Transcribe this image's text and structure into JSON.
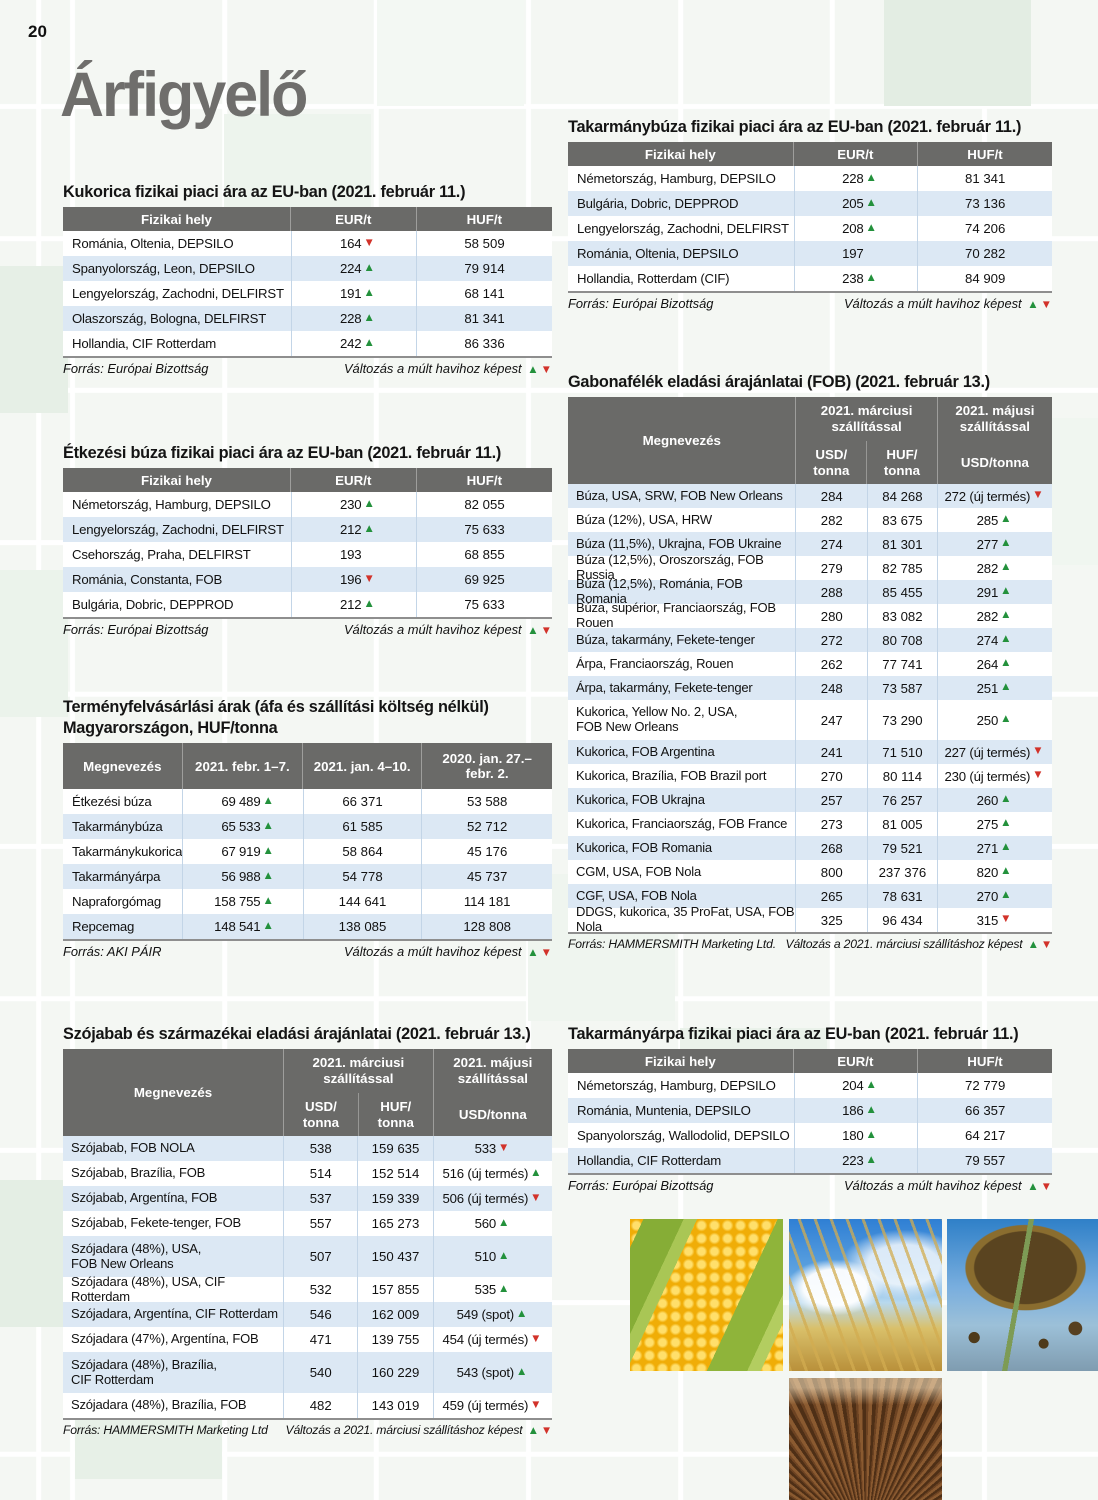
{
  "page": {
    "number": "20",
    "logo": "Árfigyelő"
  },
  "arrows": {
    "up": "▲",
    "down": "▼"
  },
  "colors": {
    "table_header_bg": "#6a6a68",
    "row_stripe": "#dce8f4",
    "trend_up": "#23913c",
    "trend_down": "#d2322a",
    "logo_gray": "#6f6e6c"
  },
  "tables": {
    "kukorica": {
      "title": "Kukorica fizikai piaci ára az EU-ban (2021. február 11.)",
      "headers": [
        "Fizikai hely",
        "EUR/t",
        "HUF/t"
      ],
      "rows": [
        [
          "Románia, Oltenia, DEPSILO",
          "164",
          "down",
          "58 509"
        ],
        [
          "Spanyolország, Leon, DEPSILO",
          "224",
          "up",
          "79 914"
        ],
        [
          "Lengyelország, Zachodni, DELFIRST",
          "191",
          "up",
          "68 141"
        ],
        [
          "Olaszország, Bologna, DELFIRST",
          "228",
          "up",
          "81 341"
        ],
        [
          "Hollandia, CIF Rotterdam",
          "242",
          "up",
          "86 336"
        ]
      ],
      "source": "Forrás: Európai Bizottság",
      "note": "Változás a múlt havihoz képest"
    },
    "etkezesi": {
      "title": "Étkezési búza fizikai piaci ára az EU-ban (2021. február 11.)",
      "headers": [
        "Fizikai hely",
        "EUR/t",
        "HUF/t"
      ],
      "rows": [
        [
          "Németország, Hamburg, DEPSILO",
          "230",
          "up",
          "82 055"
        ],
        [
          "Lengyelország, Zachodni, DELFIRST",
          "212",
          "up",
          "75 633"
        ],
        [
          "Csehország, Praha, DELFIRST",
          "193",
          null,
          "68 855"
        ],
        [
          "Románia, Constanta, FOB",
          "196",
          "down",
          "69 925"
        ],
        [
          "Bulgária, Dobric, DEPPROD",
          "212",
          "up",
          "75 633"
        ]
      ],
      "source": "Forrás: Európai Bizottság",
      "note": "Változás a múlt havihoz képest"
    },
    "takbuza": {
      "title": "Takarmánybúza fizikai piaci ára az EU-ban (2021. február 11.)",
      "headers": [
        "Fizikai hely",
        "EUR/t",
        "HUF/t"
      ],
      "rows": [
        [
          "Németország, Hamburg, DEPSILO",
          "228",
          "up",
          "81 341"
        ],
        [
          "Bulgária, Dobric, DEPPROD",
          "205",
          "up",
          "73 136"
        ],
        [
          "Lengyelország, Zachodni, DELFIRST",
          "208",
          "up",
          "74 206"
        ],
        [
          "Románia, Oltenia, DEPSILO",
          "197",
          null,
          "70 282"
        ],
        [
          "Hollandia, Rotterdam (CIF)",
          "238",
          "up",
          "84 909"
        ]
      ],
      "source": "Forrás: Európai Bizottság",
      "note": "Változás a múlt havihoz képest"
    },
    "takarpa": {
      "title": "Takarmányárpa fizikai piaci ára az EU-ban (2021. február 11.)",
      "headers": [
        "Fizikai hely",
        "EUR/t",
        "HUF/t"
      ],
      "rows": [
        [
          "Németország, Hamburg, DEPSILO",
          "204",
          "up",
          "72 779"
        ],
        [
          "Románia, Muntenia, DEPSILO",
          "186",
          "up",
          "66 357"
        ],
        [
          "Spanyolország, Wallodolid, DEPSILO",
          "180",
          "up",
          "64 217"
        ],
        [
          "Hollandia, CIF Rotterdam",
          "223",
          "up",
          "79 557"
        ]
      ],
      "source": "Forrás: Európai Bizottság",
      "note": "Változás a múlt havihoz képest"
    },
    "hungary": {
      "title": "Terményfelvásárlási árak (áfa és szállítási költség nélkül)\nMagyarországon, HUF/tonna",
      "headers": [
        "Megnevezés",
        "2021. febr. 1–7.",
        "2021. jan. 4–10.",
        "2020. jan. 27.–\nfebr. 2."
      ],
      "rows": [
        [
          "Étkezési búza",
          "69 489",
          "up",
          "66 371",
          "53 588"
        ],
        [
          "Takarmánybúza",
          "65 533",
          "up",
          "61 585",
          "52 712"
        ],
        [
          "Takarmánykukorica",
          "67 919",
          "up",
          "58 864",
          "45 176"
        ],
        [
          "Takarmányárpa",
          "56 988",
          "up",
          "54 778",
          "45 737"
        ],
        [
          "Napraforgómag",
          "158 755",
          "up",
          "144 641",
          "114 181"
        ],
        [
          "Repcemag",
          "148 541",
          "up",
          "138 085",
          "128 808"
        ]
      ],
      "source": "Forrás: AKI PÁIR",
      "note": "Változás a múlt havihoz képest"
    },
    "szoja": {
      "title": "Szójabab és származékai eladási árajánlatai (2021. február 13.)",
      "header": {
        "name": "Megnevezés",
        "march": "2021. márciusi\nszállítással",
        "may": "2021. májusi\nszállítással",
        "usd": "USD/\ntonna",
        "huf": "HUF/\ntonna",
        "may_unit": "USD/tonna"
      },
      "rows": [
        {
          "name": "Szójabab, FOB NOLA",
          "usd": "538",
          "huf": "159 635",
          "may": "533",
          "trend": "down"
        },
        {
          "name": "Szójabab, Brazília, FOB",
          "usd": "514",
          "huf": "152 514",
          "may": "516 (új termés)",
          "trend": "up"
        },
        {
          "name": "Szójabab, Argentína, FOB",
          "usd": "537",
          "huf": "159 339",
          "may": "506 (új termés)",
          "trend": "down"
        },
        {
          "name": "Szójabab, Fekete-tenger, FOB",
          "usd": "557",
          "huf": "165 273",
          "may": "560",
          "trend": "up"
        },
        {
          "name": "Szójadara (48%), USA,\nFOB New Orleans",
          "usd": "507",
          "huf": "150 437",
          "may": "510",
          "trend": "up"
        },
        {
          "name": "Szójadara (48%), USA, CIF Rotterdam",
          "usd": "532",
          "huf": "157 855",
          "may": "535",
          "trend": "up"
        },
        {
          "name": "Szójadara, Argentína, CIF Rotterdam",
          "usd": "546",
          "huf": "162 009",
          "may": "549 (spot)",
          "trend": "up"
        },
        {
          "name": "Szójadara (47%), Argentína, FOB",
          "usd": "471",
          "huf": "139 755",
          "may": "454 (új termés)",
          "trend": "down"
        },
        {
          "name": "Szójadara (48%), Brazília,\nCIF Rotterdam",
          "usd": "540",
          "huf": "160 229",
          "may": "543 (spot)",
          "trend": "up"
        },
        {
          "name": "Szójadara (48%), Brazília, FOB",
          "usd": "482",
          "huf": "143 019",
          "may": "459 (új termés)",
          "trend": "down"
        }
      ],
      "source": "Forrás: HAMMERSMITH Marketing Ltd",
      "note": "Változás a 2021. márciusi szállításhoz képest"
    },
    "gabona": {
      "title": "Gabonafélék eladási árajánlatai (FOB) (2021. február 13.)",
      "header": {
        "name": "Megnevezés",
        "march": "2021. márciusi\nszállítással",
        "may": "2021. májusi\nszállítással",
        "usd": "USD/\ntonna",
        "huf": "HUF/\ntonna",
        "may_unit": "USD/tonna"
      },
      "rows": [
        {
          "name": "Búza, USA, SRW, FOB New Orleans",
          "usd": "284",
          "huf": "84 268",
          "may": "272 (új termés)",
          "trend": "down"
        },
        {
          "name": "Búza (12%), USA, HRW",
          "usd": "282",
          "huf": "83 675",
          "may": "285",
          "trend": "up"
        },
        {
          "name": "Búza (11,5%), Ukrajna, FOB Ukraine",
          "usd": "274",
          "huf": "81 301",
          "may": "277",
          "trend": "up"
        },
        {
          "name": "Búza (12,5%), Oroszország, FOB Russia",
          "usd": "279",
          "huf": "82 785",
          "may": "282",
          "trend": "up"
        },
        {
          "name": "Búza (12,5%), Románia, FOB Romania",
          "usd": "288",
          "huf": "85 455",
          "may": "291",
          "trend": "up"
        },
        {
          "name": "Búza, supérior, Franciaország, FOB Rouen",
          "usd": "280",
          "huf": "83 082",
          "may": "282",
          "trend": "up"
        },
        {
          "name": "Búza, takarmány, Fekete-tenger",
          "usd": "272",
          "huf": "80 708",
          "may": "274",
          "trend": "up"
        },
        {
          "name": "Árpa, Franciaország, Rouen",
          "usd": "262",
          "huf": "77 741",
          "may": "264",
          "trend": "up"
        },
        {
          "name": "Árpa, takarmány, Fekete-tenger",
          "usd": "248",
          "huf": "73 587",
          "may": "251",
          "trend": "up"
        },
        {
          "name": "Kukorica, Yellow No. 2, USA,\nFOB New Orleans",
          "usd": "247",
          "huf": "73 290",
          "may": "250",
          "trend": "up"
        },
        {
          "name": "Kukorica, FOB Argentina",
          "usd": "241",
          "huf": "71 510",
          "may": "227 (új termés)",
          "trend": "down"
        },
        {
          "name": "Kukorica, Brazília, FOB Brazil port",
          "usd": "270",
          "huf": "80 114",
          "may": "230 (új termés)",
          "trend": "down"
        },
        {
          "name": "Kukorica, FOB Ukrajna",
          "usd": "257",
          "huf": "76 257",
          "may": "260",
          "trend": "up"
        },
        {
          "name": "Kukorica, Franciaország, FOB France",
          "usd": "273",
          "huf": "81 005",
          "may": "275",
          "trend": "up"
        },
        {
          "name": "Kukorica, FOB Romania",
          "usd": "268",
          "huf": "79 521",
          "may": "271",
          "trend": "up"
        },
        {
          "name": "CGM, USA, FOB Nola",
          "usd": "800",
          "huf": "237 376",
          "may": "820",
          "trend": "up"
        },
        {
          "name": "CGF, USA, FOB Nola",
          "usd": "265",
          "huf": "78 631",
          "may": "270",
          "trend": "up"
        },
        {
          "name": "DDGS, kukorica, 35 ProFat, USA, FOB Nola",
          "usd": "325",
          "huf": "96 434",
          "may": "315",
          "trend": "down"
        }
      ],
      "source": "Forrás: HAMMERSMITH Marketing Ltd.",
      "note": "Változás a 2021. márciusi szállításhoz képest"
    }
  },
  "photos": [
    "corn-cob",
    "wheat-ears",
    "sunflower-heads",
    "plowed-field"
  ]
}
